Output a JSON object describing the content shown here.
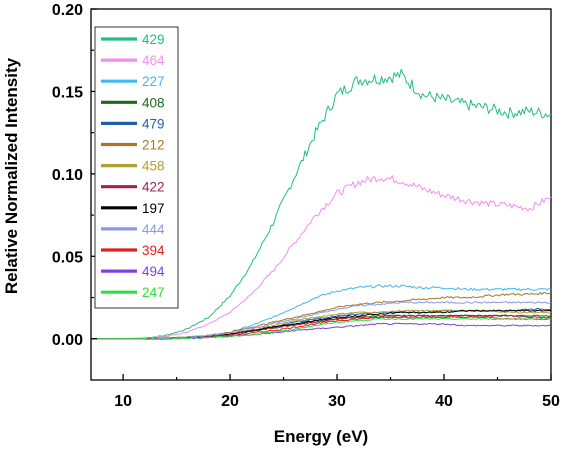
{
  "chart_data": {
    "type": "line",
    "title": "",
    "xlabel": "Energy (eV)",
    "ylabel": "Relative Normalized Intensity",
    "xlim": [
      7,
      50
    ],
    "ylim": [
      -0.025,
      0.2
    ],
    "xticks": [
      10,
      20,
      30,
      40,
      50
    ],
    "xtick_labels": [
      "10",
      "20",
      "30",
      "40",
      "50"
    ],
    "yticks": [
      0.0,
      0.05,
      0.1,
      0.15,
      0.2
    ],
    "ytick_labels": [
      "0.00",
      "0.05",
      "0.10",
      "0.15",
      "0.20"
    ],
    "grid": false,
    "legend_position": "top-left",
    "x": [
      7,
      10,
      12,
      14,
      16,
      18,
      20,
      22,
      24,
      26,
      28,
      30,
      32,
      34,
      36,
      38,
      40,
      42,
      44,
      46,
      48,
      50
    ],
    "series": [
      {
        "name": "429",
        "color": "#20c080",
        "values": [
          0.0,
          0.0,
          0.0005,
          0.002,
          0.006,
          0.013,
          0.026,
          0.045,
          0.07,
          0.098,
          0.125,
          0.148,
          0.157,
          0.158,
          0.16,
          0.148,
          0.145,
          0.142,
          0.14,
          0.137,
          0.138,
          0.136
        ]
      },
      {
        "name": "464",
        "color": "#f28ef2",
        "values": [
          0.0,
          0.0,
          0.0003,
          0.0015,
          0.004,
          0.009,
          0.016,
          0.027,
          0.041,
          0.058,
          0.075,
          0.088,
          0.095,
          0.098,
          0.096,
          0.091,
          0.087,
          0.084,
          0.082,
          0.081,
          0.079,
          0.086
        ]
      },
      {
        "name": "227",
        "color": "#40b8f0",
        "values": [
          0.0,
          0.0,
          0.0,
          0.0003,
          0.001,
          0.002,
          0.004,
          0.008,
          0.013,
          0.019,
          0.025,
          0.029,
          0.031,
          0.032,
          0.032,
          0.031,
          0.031,
          0.03,
          0.03,
          0.03,
          0.03,
          0.03
        ]
      },
      {
        "name": "408",
        "color": "#1a6a1a",
        "values": [
          0.0,
          0.0,
          0.0,
          0.0002,
          0.0006,
          0.0014,
          0.003,
          0.005,
          0.007,
          0.009,
          0.011,
          0.012,
          0.013,
          0.014,
          0.014,
          0.014,
          0.014,
          0.014,
          0.014,
          0.014,
          0.014,
          0.014
        ]
      },
      {
        "name": "479",
        "color": "#2060a8",
        "values": [
          0.0,
          0.0,
          0.0,
          0.0002,
          0.0007,
          0.0016,
          0.003,
          0.005,
          0.007,
          0.01,
          0.012,
          0.014,
          0.015,
          0.016,
          0.016,
          0.016,
          0.017,
          0.017,
          0.017,
          0.017,
          0.018,
          0.018
        ]
      },
      {
        "name": "212",
        "color": "#a87828",
        "values": [
          0.0,
          0.0,
          0.0,
          0.0003,
          0.0009,
          0.002,
          0.004,
          0.007,
          0.01,
          0.013,
          0.016,
          0.019,
          0.021,
          0.022,
          0.023,
          0.024,
          0.025,
          0.025,
          0.026,
          0.027,
          0.027,
          0.028
        ]
      },
      {
        "name": "458",
        "color": "#b0a030",
        "values": [
          0.0,
          0.0,
          0.0,
          0.0002,
          0.0007,
          0.0015,
          0.003,
          0.005,
          0.008,
          0.011,
          0.013,
          0.015,
          0.016,
          0.016,
          0.017,
          0.017,
          0.017,
          0.017,
          0.017,
          0.016,
          0.016,
          0.016
        ]
      },
      {
        "name": "422",
        "color": "#a02050",
        "values": [
          0.0,
          0.0,
          0.0,
          0.0002,
          0.0006,
          0.0014,
          0.0028,
          0.0045,
          0.0065,
          0.0085,
          0.01,
          0.012,
          0.013,
          0.013,
          0.014,
          0.014,
          0.014,
          0.014,
          0.014,
          0.014,
          0.013,
          0.013
        ]
      },
      {
        "name": "197",
        "color": "#000000",
        "values": [
          0.0,
          0.0,
          0.0,
          0.0002,
          0.0006,
          0.0014,
          0.003,
          0.005,
          0.007,
          0.009,
          0.011,
          0.013,
          0.014,
          0.015,
          0.016,
          0.016,
          0.016,
          0.017,
          0.017,
          0.017,
          0.017,
          0.017
        ]
      },
      {
        "name": "444",
        "color": "#8a9ae0",
        "values": [
          0.0,
          0.0,
          0.0,
          0.0003,
          0.0008,
          0.0018,
          0.0035,
          0.006,
          0.009,
          0.012,
          0.015,
          0.018,
          0.02,
          0.021,
          0.022,
          0.022,
          0.022,
          0.022,
          0.022,
          0.022,
          0.022,
          0.022
        ]
      },
      {
        "name": "394",
        "color": "#e02020",
        "values": [
          0.0,
          0.0,
          0.0,
          0.0001,
          0.0004,
          0.001,
          0.002,
          0.0035,
          0.005,
          0.007,
          0.009,
          0.011,
          0.012,
          0.013,
          0.013,
          0.013,
          0.013,
          0.013,
          0.013,
          0.012,
          0.012,
          0.012
        ]
      },
      {
        "name": "494",
        "color": "#8040e0",
        "values": [
          0.0,
          0.0,
          0.0,
          0.0001,
          0.0003,
          0.0008,
          0.0015,
          0.0025,
          0.0035,
          0.005,
          0.006,
          0.007,
          0.008,
          0.009,
          0.009,
          0.009,
          0.009,
          0.008,
          0.008,
          0.008,
          0.008,
          0.008
        ]
      },
      {
        "name": "247",
        "color": "#30e040",
        "values": [
          0.0,
          0.0,
          0.0,
          0.0001,
          0.0003,
          0.0008,
          0.0015,
          0.0025,
          0.004,
          0.006,
          0.008,
          0.01,
          0.011,
          0.012,
          0.012,
          0.012,
          0.012,
          0.012,
          0.012,
          0.012,
          0.012,
          0.012
        ]
      }
    ]
  }
}
